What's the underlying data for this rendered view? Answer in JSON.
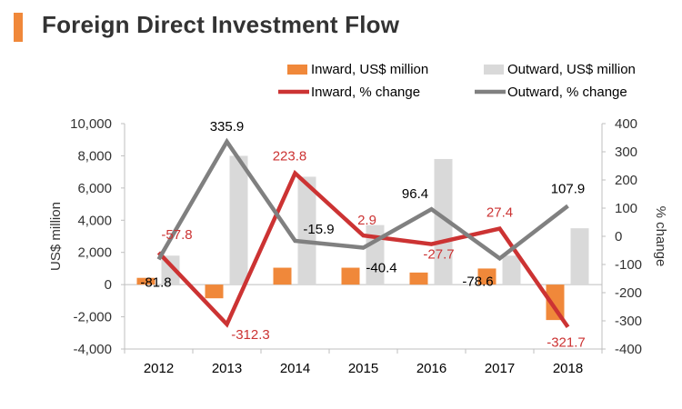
{
  "title": "Foreign Direct Investment Flow",
  "colors": {
    "inward_bar": "#f0883a",
    "outward_bar": "#d9d9d9",
    "inward_line": "#cc3333",
    "outward_line": "#808080",
    "accent": "#f0883a"
  },
  "chart_data": {
    "type": "bar",
    "categories": [
      "2012",
      "2013",
      "2014",
      "2015",
      "2016",
      "2017",
      "2018"
    ],
    "series": [
      {
        "name": "Inward, US$ million",
        "type": "bar",
        "axis": "left",
        "values": [
          420,
          -850,
          1050,
          1050,
          750,
          1000,
          -2200
        ]
      },
      {
        "name": "Outward, US$ million",
        "type": "bar",
        "axis": "left",
        "values": [
          1800,
          8000,
          6700,
          3700,
          7800,
          1800,
          3500
        ]
      },
      {
        "name": "Inward, % change",
        "type": "line",
        "axis": "right",
        "values": [
          -57.8,
          -312.3,
          223.8,
          2.9,
          -27.7,
          27.4,
          -321.7
        ],
        "labels": [
          "-57.8",
          "-312.3",
          "223.8",
          "2.9",
          "-27.7",
          "27.4",
          "-321.7"
        ]
      },
      {
        "name": "Outward, % change",
        "type": "line",
        "axis": "right",
        "values": [
          -81.8,
          335.9,
          -15.9,
          -40.4,
          96.4,
          -78.6,
          107.9
        ],
        "labels": [
          "-81.8",
          "335.9",
          "-15.9",
          "-40.4",
          "96.4",
          "-78.6",
          "107.9"
        ]
      }
    ],
    "y_left": {
      "label": "US$ million",
      "range": [
        -4000,
        10000
      ],
      "ticks": [
        "10,000",
        "8,000",
        "6,000",
        "4,000",
        "2,000",
        "0",
        "-2,000",
        "-4,000"
      ]
    },
    "y_right": {
      "label": "% change",
      "range": [
        -400,
        400
      ],
      "ticks": [
        "400",
        "300",
        "200",
        "100",
        "0",
        "-100",
        "-200",
        "-300",
        "-400"
      ]
    },
    "legend": "top-right",
    "grid": false
  }
}
